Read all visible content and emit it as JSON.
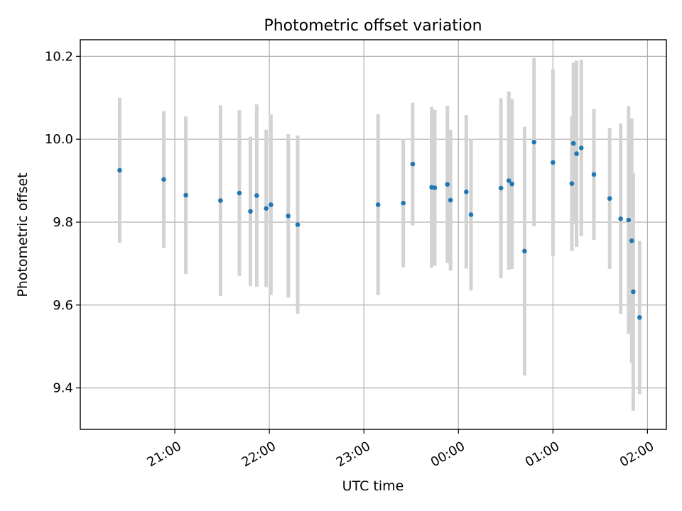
{
  "chart_data": {
    "type": "scatter",
    "title": "Photometric offset variation",
    "xlabel": "UTC time",
    "ylabel": "Photometric offset",
    "grid": true,
    "x_ticks": [
      {
        "t": "21:00",
        "label": "21:00"
      },
      {
        "t": "22:00",
        "label": "22:00"
      },
      {
        "t": "23:00",
        "label": "23:00"
      },
      {
        "t": "24:00",
        "label": "00:00"
      },
      {
        "t": "25:00",
        "label": "01:00"
      },
      {
        "t": "26:00",
        "label": "02:00"
      }
    ],
    "xlim": [
      "20:00",
      "26:12"
    ],
    "ylim": [
      9.3,
      10.24
    ],
    "y_ticks": [
      9.4,
      9.6,
      9.8,
      10.0,
      10.2
    ],
    "colors": {
      "point": "#1f77b4",
      "errorbar": "#d3d3d3"
    },
    "series": [
      {
        "points": [
          {
            "t": "20:25",
            "y": 9.925,
            "err": 0.175
          },
          {
            "t": "20:53",
            "y": 9.903,
            "err": 0.165
          },
          {
            "t": "21:07",
            "y": 9.865,
            "err": 0.19
          },
          {
            "t": "21:29",
            "y": 9.852,
            "err": 0.23
          },
          {
            "t": "21:41",
            "y": 9.87,
            "err": 0.2
          },
          {
            "t": "21:48",
            "y": 9.826,
            "err": 0.18
          },
          {
            "t": "21:52",
            "y": 9.864,
            "err": 0.22
          },
          {
            "t": "21:58",
            "y": 9.833,
            "err": 0.19
          },
          {
            "t": "22:01",
            "y": 9.842,
            "err": 0.218
          },
          {
            "t": "22:12",
            "y": 9.815,
            "err": 0.197
          },
          {
            "t": "22:18",
            "y": 9.794,
            "err": 0.215
          },
          {
            "t": "23:09",
            "y": 9.842,
            "err": 0.218
          },
          {
            "t": "23:25",
            "y": 9.846,
            "err": 0.155
          },
          {
            "t": "23:31",
            "y": 9.94,
            "err": 0.148
          },
          {
            "t": "23:43",
            "y": 9.884,
            "err": 0.194
          },
          {
            "t": "23:45",
            "y": 9.883,
            "err": 0.188
          },
          {
            "t": "23:53",
            "y": 9.891,
            "err": 0.19
          },
          {
            "t": "23:55",
            "y": 9.853,
            "err": 0.17
          },
          {
            "t": "24:05",
            "y": 9.873,
            "err": 0.185
          },
          {
            "t": "24:08",
            "y": 9.818,
            "err": 0.183
          },
          {
            "t": "24:27",
            "y": 9.882,
            "err": 0.217
          },
          {
            "t": "24:32",
            "y": 9.9,
            "err": 0.215
          },
          {
            "t": "24:34",
            "y": 9.892,
            "err": 0.205
          },
          {
            "t": "24:42",
            "y": 9.73,
            "err": 0.3
          },
          {
            "t": "24:48",
            "y": 9.993,
            "err": 0.203
          },
          {
            "t": "25:00",
            "y": 9.944,
            "err": 0.225
          },
          {
            "t": "25:12",
            "y": 9.893,
            "err": 0.163
          },
          {
            "t": "25:13",
            "y": 9.99,
            "err": 0.195
          },
          {
            "t": "25:15",
            "y": 9.965,
            "err": 0.225
          },
          {
            "t": "25:18",
            "y": 9.979,
            "err": 0.213
          },
          {
            "t": "25:26",
            "y": 9.915,
            "err": 0.158
          },
          {
            "t": "25:36",
            "y": 9.857,
            "err": 0.17
          },
          {
            "t": "25:43",
            "y": 9.808,
            "err": 0.23
          },
          {
            "t": "25:48",
            "y": 9.805,
            "err": 0.275
          },
          {
            "t": "25:50",
            "y": 9.755,
            "err": 0.295
          },
          {
            "t": "25:51",
            "y": 9.632,
            "err": 0.287
          },
          {
            "t": "25:55",
            "y": 9.57,
            "err": 0.185
          }
        ]
      }
    ]
  }
}
